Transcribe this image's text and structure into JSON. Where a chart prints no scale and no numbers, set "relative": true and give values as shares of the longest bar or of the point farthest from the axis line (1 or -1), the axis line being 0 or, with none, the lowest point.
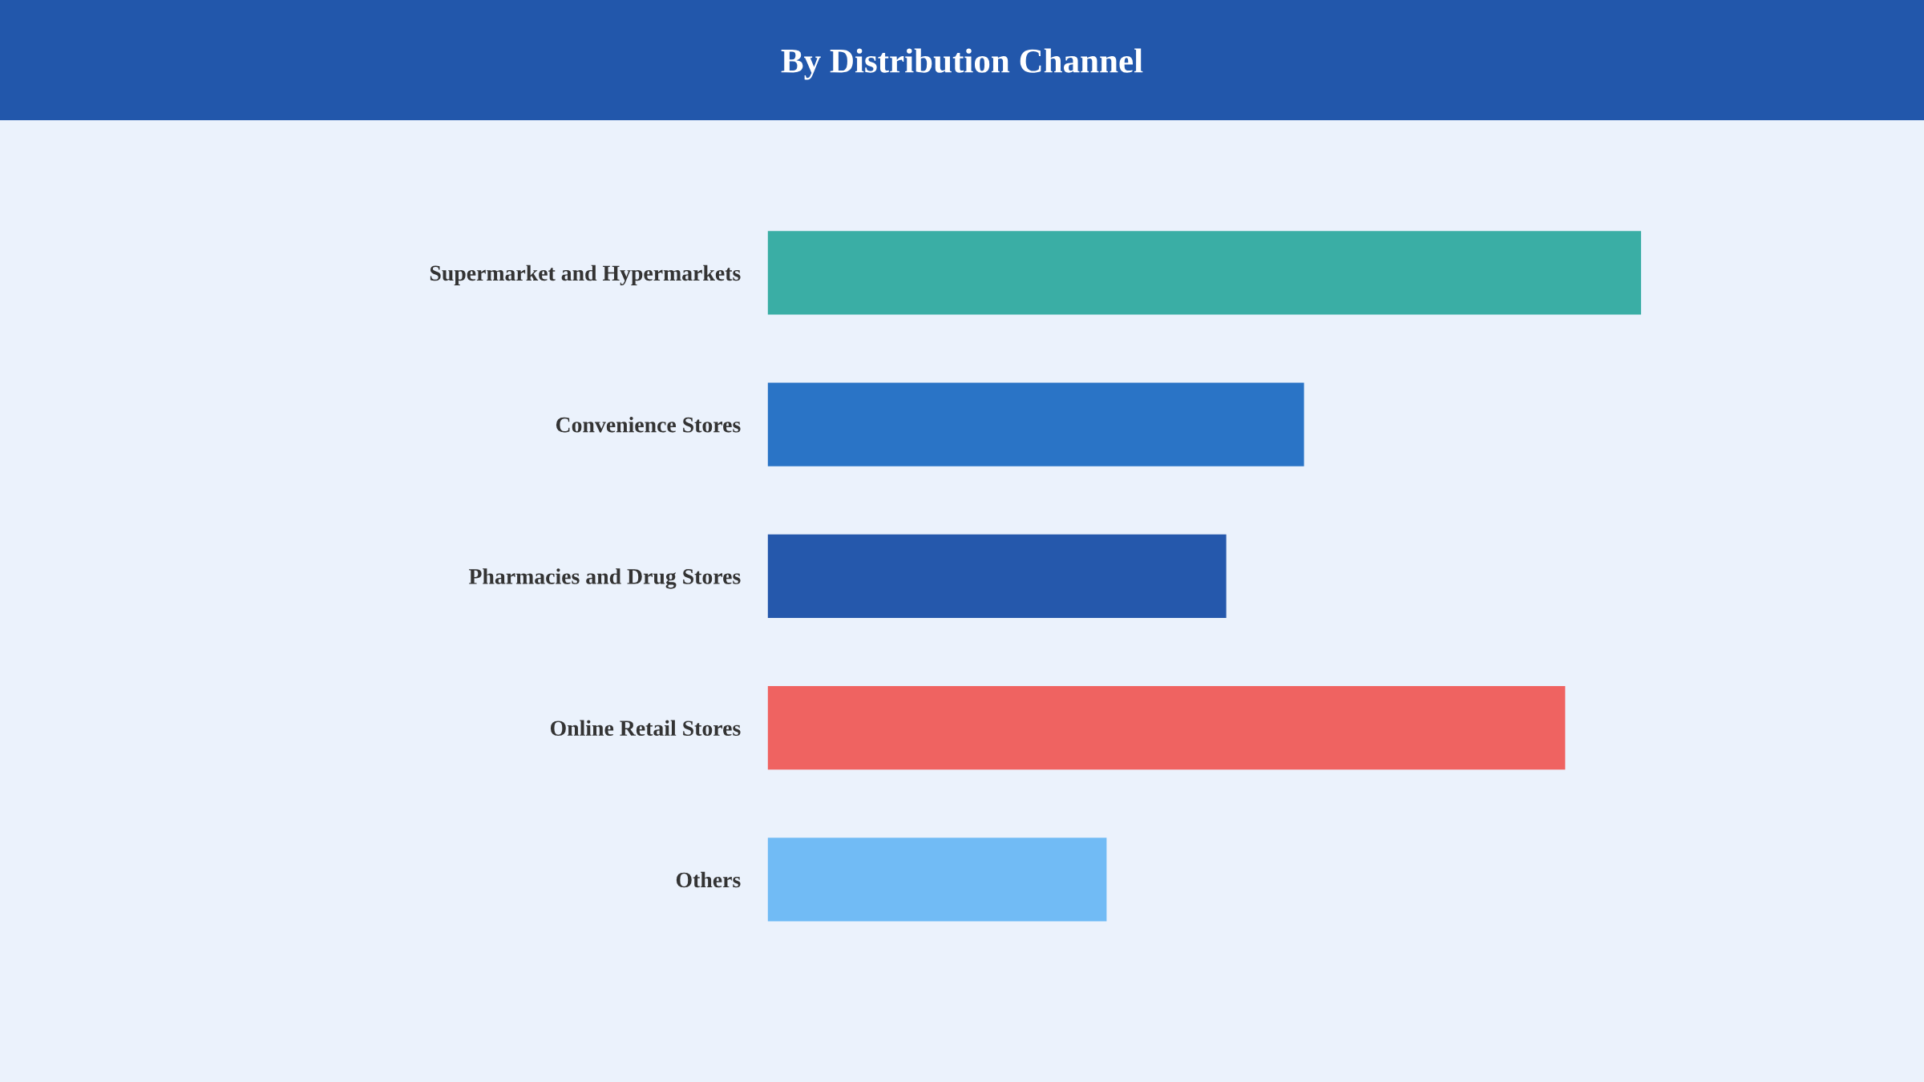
{
  "chart_data": {
    "type": "bar",
    "orientation": "horizontal",
    "relative": true,
    "title": "By Distribution Channel",
    "categories": [
      "Supermarket and Hypermarkets",
      "Convenience Stores",
      "Pharmacies and Drug Stores",
      "Online Retail Stores",
      "Others"
    ],
    "values": [
      1,
      0.614,
      0.525,
      0.913,
      0.388
    ],
    "colors": [
      "#3aaea5",
      "#2a74c6",
      "#2558ac",
      "#ef6361",
      "#71bbf5"
    ],
    "grid": false,
    "legend": false
  }
}
